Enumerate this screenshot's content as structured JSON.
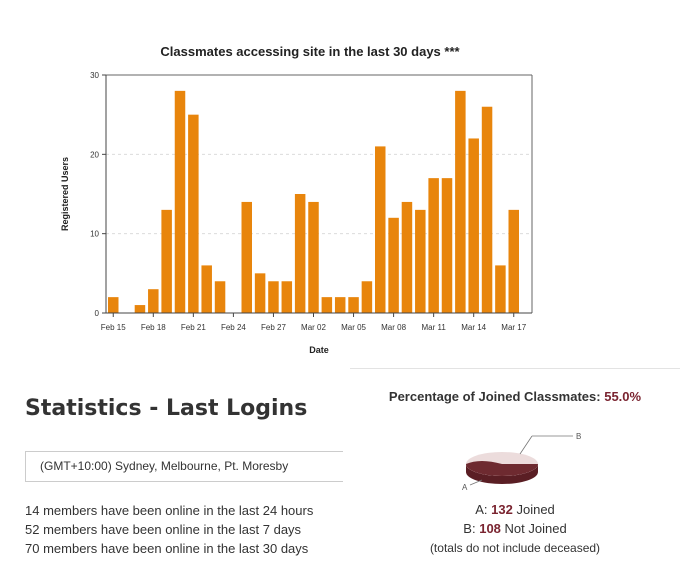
{
  "chart_data": {
    "type": "bar",
    "title": "Classmates accessing site in the last 30 days ***",
    "xlabel": "Date",
    "ylabel": "Registered Users",
    "ylim": [
      0,
      30
    ],
    "yticks": [
      "0",
      "10",
      "20",
      "30"
    ],
    "xticks": [
      "Feb 15",
      "Feb 18",
      "Feb 21",
      "Feb 24",
      "Feb 27",
      "Mar 02",
      "Mar 05",
      "Mar 08",
      "Mar 11",
      "Mar 14",
      "Mar 17"
    ],
    "categories": [
      "Feb 15",
      "Feb 16",
      "Feb 17",
      "Feb 18",
      "Feb 19",
      "Feb 20",
      "Feb 21",
      "Feb 22",
      "Feb 23",
      "Feb 24",
      "Feb 25",
      "Feb 26",
      "Feb 27",
      "Feb 28",
      "Mar 01",
      "Mar 02",
      "Mar 03",
      "Mar 04",
      "Mar 05",
      "Mar 06",
      "Mar 07",
      "Mar 08",
      "Mar 09",
      "Mar 10",
      "Mar 11",
      "Mar 12",
      "Mar 13",
      "Mar 14",
      "Mar 15",
      "Mar 16",
      "Mar 17"
    ],
    "values": [
      2,
      0,
      1,
      3,
      13,
      28,
      25,
      6,
      4,
      0,
      14,
      5,
      4,
      4,
      15,
      14,
      2,
      2,
      2,
      4,
      21,
      12,
      14,
      13,
      17,
      17,
      28,
      22,
      26,
      6,
      13
    ],
    "grid": true,
    "bar_color": "#e8850c"
  },
  "stats": {
    "title": "Statistics - Last Logins",
    "timezone": "(GMT+10:00) Sydney, Melbourne, Pt. Moresby",
    "lines": [
      "14 members have been online in the last 24 hours",
      "52 members have been online in the last 7 days",
      "70 members have been online in the last 30 days"
    ]
  },
  "pie": {
    "heading": "Percentage of Joined Classmates: ",
    "percent": "55.0%",
    "callout_a": "A",
    "callout_b": "B",
    "joined": {
      "letter": "A:",
      "count": "132",
      "label": "Joined",
      "color": "#6e2a30"
    },
    "not_joined": {
      "letter": "B:",
      "count": "108",
      "label": "Not Joined",
      "color": "#ecdcdc"
    },
    "note": "(totals do not include deceased)"
  }
}
